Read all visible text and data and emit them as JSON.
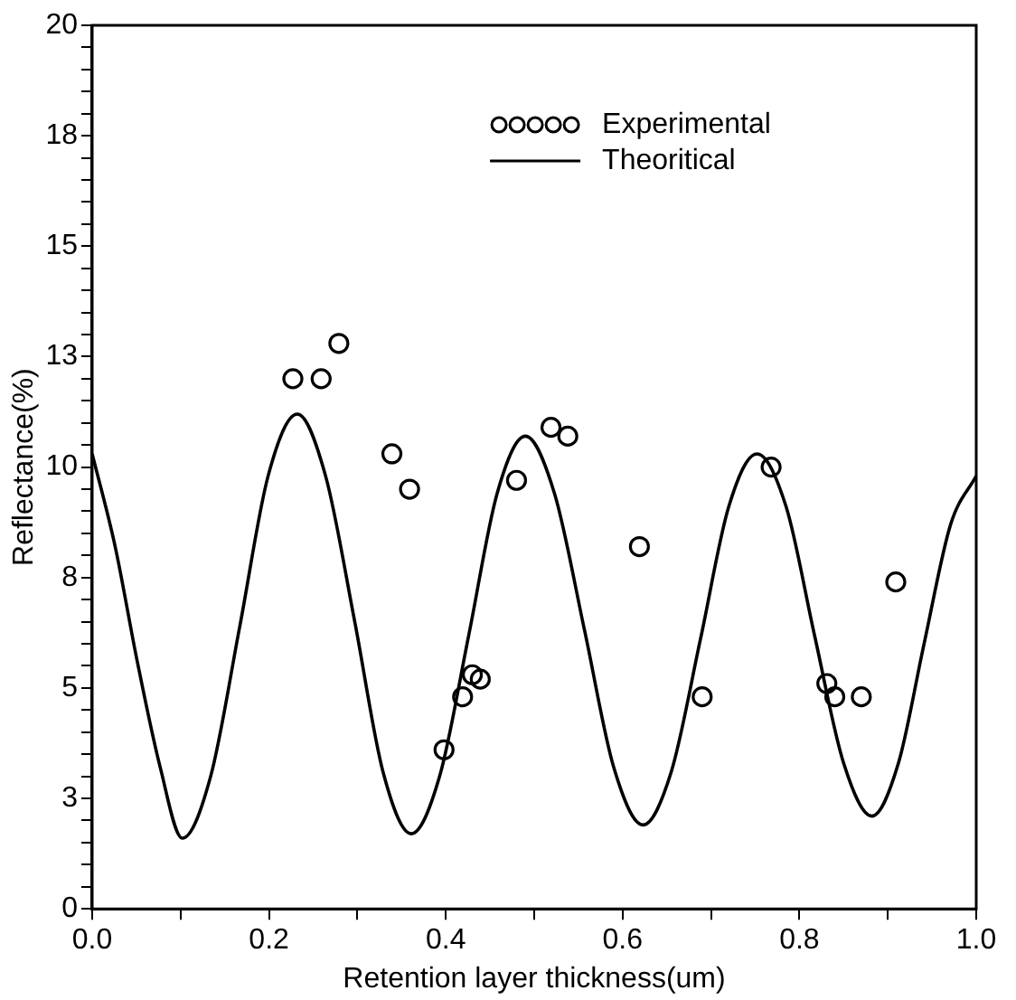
{
  "chart_data": {
    "type": "scatter",
    "xlabel": "Retention layer thickness(um)",
    "ylabel": "Reflectance(%)",
    "xlim": [
      0,
      1
    ],
    "ylim": [
      0,
      20
    ],
    "grid": false,
    "legend": "top right",
    "xticks": [
      {
        "value": 0,
        "label": "0.0"
      },
      {
        "value": 0.1,
        "label": null
      },
      {
        "value": 0.2,
        "label": "0.2"
      },
      {
        "value": 0.3,
        "label": null
      },
      {
        "value": 0.4,
        "label": "0.4"
      },
      {
        "value": 0.5,
        "label": null
      },
      {
        "value": 0.6,
        "label": "0.6"
      },
      {
        "value": 0.7,
        "label": null
      },
      {
        "value": 0.8,
        "label": "0.8"
      },
      {
        "value": 0.9,
        "label": null
      },
      {
        "value": 1,
        "label": "1.0"
      }
    ],
    "yticks": [
      0,
      {
        "value": 0.5,
        "label": null
      },
      {
        "value": 1,
        "label": null
      },
      {
        "value": 1.5,
        "label": null
      },
      {
        "value": 2,
        "label": null
      },
      {
        "value": 2.5,
        "label": "3"
      },
      {
        "value": 3,
        "label": null
      },
      {
        "value": 3.5,
        "label": null
      },
      {
        "value": 4,
        "label": null
      },
      {
        "value": 4.5,
        "label": null
      },
      5,
      {
        "value": 5.5,
        "label": null
      },
      {
        "value": 6,
        "label": null
      },
      {
        "value": 6.5,
        "label": null
      },
      {
        "value": 7,
        "label": null
      },
      {
        "value": 7.5,
        "label": "8"
      },
      {
        "value": 8,
        "label": null
      },
      {
        "value": 8.5,
        "label": null
      },
      {
        "value": 9,
        "label": null
      },
      {
        "value": 9.5,
        "label": null
      },
      10,
      {
        "value": 10.5,
        "label": null
      },
      {
        "value": 11,
        "label": null
      },
      {
        "value": 11.5,
        "label": null
      },
      {
        "value": 12,
        "label": null
      },
      {
        "value": 12.5,
        "label": "13"
      },
      {
        "value": 13,
        "label": null
      },
      {
        "value": 13.5,
        "label": null
      },
      {
        "value": 14,
        "label": null
      },
      {
        "value": 14.5,
        "label": null
      },
      15,
      {
        "value": 15.5,
        "label": null
      },
      {
        "value": 16,
        "label": null
      },
      {
        "value": 16.5,
        "label": null
      },
      {
        "value": 17,
        "label": null
      },
      {
        "value": 17.5,
        "label": "18"
      },
      {
        "value": 18,
        "label": null
      },
      {
        "value": 18.5,
        "label": null
      },
      {
        "value": 19,
        "label": null
      },
      {
        "value": 19.5,
        "label": null
      },
      20
    ],
    "series": [
      {
        "name": "Experimental",
        "marker": "circle",
        "color": "#000000",
        "x": [
          0.227,
          0.259,
          0.279,
          0.339,
          0.359,
          0.398,
          0.419,
          0.43,
          0.439,
          0.48,
          0.519,
          0.538,
          0.619,
          0.69,
          0.768,
          0.831,
          0.84,
          0.87,
          0.909
        ],
        "values": [
          12.0,
          12.0,
          12.8,
          10.3,
          9.5,
          3.6,
          4.8,
          5.3,
          5.2,
          9.7,
          10.9,
          10.7,
          8.2,
          4.8,
          10.0,
          5.1,
          4.8,
          4.8,
          7.4
        ]
      },
      {
        "name": "Theoritical",
        "type": "line",
        "marker": "none",
        "line_style": "solid",
        "color": "#000000",
        "x": [
          0,
          0.026,
          0.051,
          0.077,
          0.102,
          0.134,
          0.167,
          0.199,
          0.232,
          0.264,
          0.297,
          0.329,
          0.361,
          0.393,
          0.426,
          0.458,
          0.49,
          0.523,
          0.557,
          0.59,
          0.623,
          0.655,
          0.688,
          0.72,
          0.752,
          0.785,
          0.817,
          0.85,
          0.882,
          0.912,
          0.941,
          0.971,
          1.0
        ],
        "values": [
          10.3,
          8.2,
          5.6,
          3.2,
          1.6,
          3.0,
          6.4,
          9.8,
          11.2,
          9.8,
          6.5,
          3.1,
          1.7,
          3.0,
          6.2,
          9.4,
          10.7,
          9.4,
          6.3,
          3.2,
          1.9,
          3.1,
          6.1,
          9.1,
          10.3,
          9.1,
          6.2,
          3.3,
          2.1,
          3.3,
          6.0,
          8.7,
          9.8
        ]
      }
    ]
  }
}
